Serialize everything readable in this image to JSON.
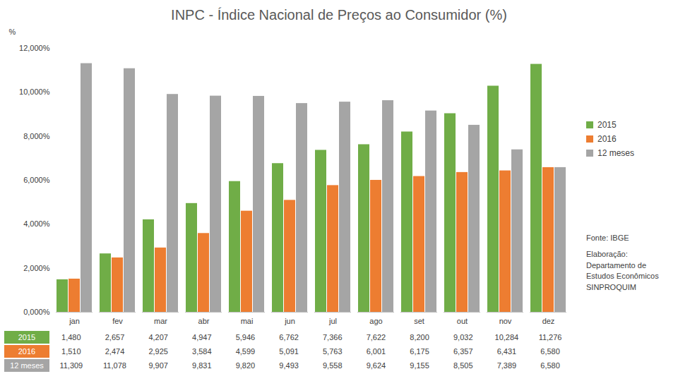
{
  "chart_data": {
    "type": "bar",
    "title": "INPC - Índice Nacional de Preços ao Consumidor (%)",
    "y_label": "%",
    "categories": [
      "jan",
      "fev",
      "mar",
      "abr",
      "mai",
      "jun",
      "jul",
      "ago",
      "set",
      "out",
      "nov",
      "dez"
    ],
    "series": [
      {
        "name": "2015",
        "color": "#70ad47",
        "values": [
          1.48,
          2.657,
          4.207,
          4.947,
          5.946,
          6.762,
          7.366,
          7.622,
          8.2,
          9.032,
          10.284,
          11.276
        ],
        "value_labels": [
          "1,480",
          "2,657",
          "4,207",
          "4,947",
          "5,946",
          "6,762",
          "7,366",
          "7,622",
          "8,200",
          "9,032",
          "10,284",
          "11,276"
        ]
      },
      {
        "name": "2016",
        "color": "#ed7d31",
        "values": [
          1.51,
          2.474,
          2.925,
          3.584,
          4.599,
          5.091,
          5.763,
          6.001,
          6.175,
          6.357,
          6.431,
          6.58
        ],
        "value_labels": [
          "1,510",
          "2,474",
          "2,925",
          "3,584",
          "4,599",
          "5,091",
          "5,763",
          "6,001",
          "6,175",
          "6,357",
          "6,431",
          "6,580"
        ]
      },
      {
        "name": "12 meses",
        "color": "#a5a5a5",
        "values": [
          11.309,
          11.078,
          9.907,
          9.831,
          9.82,
          9.493,
          9.558,
          9.624,
          9.155,
          8.505,
          7.389,
          6.58
        ],
        "value_labels": [
          "11,309",
          "11,078",
          "9,907",
          "9,831",
          "9,820",
          "9,493",
          "9,558",
          "9,624",
          "9,155",
          "8,505",
          "7,389",
          "6,580"
        ]
      }
    ],
    "ylim": [
      0,
      12
    ],
    "yticks": [
      {
        "value": 0,
        "label": "0,000%"
      },
      {
        "value": 2,
        "label": "2,000%"
      },
      {
        "value": 4,
        "label": "4,000%"
      },
      {
        "value": 6,
        "label": "6,000%"
      },
      {
        "value": 8,
        "label": "8,000%"
      },
      {
        "value": 10,
        "label": "10,000%"
      },
      {
        "value": 12,
        "label": "12,000%"
      }
    ],
    "grid": false,
    "legend": "right",
    "annotations": [
      "Fonte: IBGE",
      "Elaboração: Departamento de Estudos Econômicos SINPROQUIM"
    ]
  }
}
